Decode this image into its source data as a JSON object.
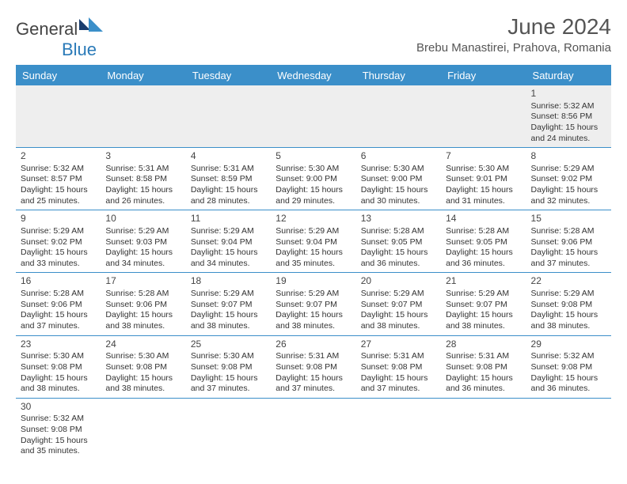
{
  "logo": {
    "text1": "General",
    "text2": "Blue"
  },
  "title": "June 2024",
  "location": "Brebu Manastirei, Prahova, Romania",
  "days": [
    "Sunday",
    "Monday",
    "Tuesday",
    "Wednesday",
    "Thursday",
    "Friday",
    "Saturday"
  ],
  "header_bg": "#3b8fc9",
  "border_color": "#3b8fc9",
  "weeks": [
    [
      null,
      null,
      null,
      null,
      null,
      null,
      {
        "n": "1",
        "rise": "5:32 AM",
        "set": "8:56 PM",
        "dl": "15 hours and 24 minutes."
      }
    ],
    [
      {
        "n": "2",
        "rise": "5:32 AM",
        "set": "8:57 PM",
        "dl": "15 hours and 25 minutes."
      },
      {
        "n": "3",
        "rise": "5:31 AM",
        "set": "8:58 PM",
        "dl": "15 hours and 26 minutes."
      },
      {
        "n": "4",
        "rise": "5:31 AM",
        "set": "8:59 PM",
        "dl": "15 hours and 28 minutes."
      },
      {
        "n": "5",
        "rise": "5:30 AM",
        "set": "9:00 PM",
        "dl": "15 hours and 29 minutes."
      },
      {
        "n": "6",
        "rise": "5:30 AM",
        "set": "9:00 PM",
        "dl": "15 hours and 30 minutes."
      },
      {
        "n": "7",
        "rise": "5:30 AM",
        "set": "9:01 PM",
        "dl": "15 hours and 31 minutes."
      },
      {
        "n": "8",
        "rise": "5:29 AM",
        "set": "9:02 PM",
        "dl": "15 hours and 32 minutes."
      }
    ],
    [
      {
        "n": "9",
        "rise": "5:29 AM",
        "set": "9:02 PM",
        "dl": "15 hours and 33 minutes."
      },
      {
        "n": "10",
        "rise": "5:29 AM",
        "set": "9:03 PM",
        "dl": "15 hours and 34 minutes."
      },
      {
        "n": "11",
        "rise": "5:29 AM",
        "set": "9:04 PM",
        "dl": "15 hours and 34 minutes."
      },
      {
        "n": "12",
        "rise": "5:29 AM",
        "set": "9:04 PM",
        "dl": "15 hours and 35 minutes."
      },
      {
        "n": "13",
        "rise": "5:28 AM",
        "set": "9:05 PM",
        "dl": "15 hours and 36 minutes."
      },
      {
        "n": "14",
        "rise": "5:28 AM",
        "set": "9:05 PM",
        "dl": "15 hours and 36 minutes."
      },
      {
        "n": "15",
        "rise": "5:28 AM",
        "set": "9:06 PM",
        "dl": "15 hours and 37 minutes."
      }
    ],
    [
      {
        "n": "16",
        "rise": "5:28 AM",
        "set": "9:06 PM",
        "dl": "15 hours and 37 minutes."
      },
      {
        "n": "17",
        "rise": "5:28 AM",
        "set": "9:06 PM",
        "dl": "15 hours and 38 minutes."
      },
      {
        "n": "18",
        "rise": "5:29 AM",
        "set": "9:07 PM",
        "dl": "15 hours and 38 minutes."
      },
      {
        "n": "19",
        "rise": "5:29 AM",
        "set": "9:07 PM",
        "dl": "15 hours and 38 minutes."
      },
      {
        "n": "20",
        "rise": "5:29 AM",
        "set": "9:07 PM",
        "dl": "15 hours and 38 minutes."
      },
      {
        "n": "21",
        "rise": "5:29 AM",
        "set": "9:07 PM",
        "dl": "15 hours and 38 minutes."
      },
      {
        "n": "22",
        "rise": "5:29 AM",
        "set": "9:08 PM",
        "dl": "15 hours and 38 minutes."
      }
    ],
    [
      {
        "n": "23",
        "rise": "5:30 AM",
        "set": "9:08 PM",
        "dl": "15 hours and 38 minutes."
      },
      {
        "n": "24",
        "rise": "5:30 AM",
        "set": "9:08 PM",
        "dl": "15 hours and 38 minutes."
      },
      {
        "n": "25",
        "rise": "5:30 AM",
        "set": "9:08 PM",
        "dl": "15 hours and 37 minutes."
      },
      {
        "n": "26",
        "rise": "5:31 AM",
        "set": "9:08 PM",
        "dl": "15 hours and 37 minutes."
      },
      {
        "n": "27",
        "rise": "5:31 AM",
        "set": "9:08 PM",
        "dl": "15 hours and 37 minutes."
      },
      {
        "n": "28",
        "rise": "5:31 AM",
        "set": "9:08 PM",
        "dl": "15 hours and 36 minutes."
      },
      {
        "n": "29",
        "rise": "5:32 AM",
        "set": "9:08 PM",
        "dl": "15 hours and 36 minutes."
      }
    ],
    [
      {
        "n": "30",
        "rise": "5:32 AM",
        "set": "9:08 PM",
        "dl": "15 hours and 35 minutes."
      },
      null,
      null,
      null,
      null,
      null,
      null
    ]
  ],
  "labels": {
    "sunrise": "Sunrise: ",
    "sunset": "Sunset: ",
    "daylight": "Daylight: "
  }
}
